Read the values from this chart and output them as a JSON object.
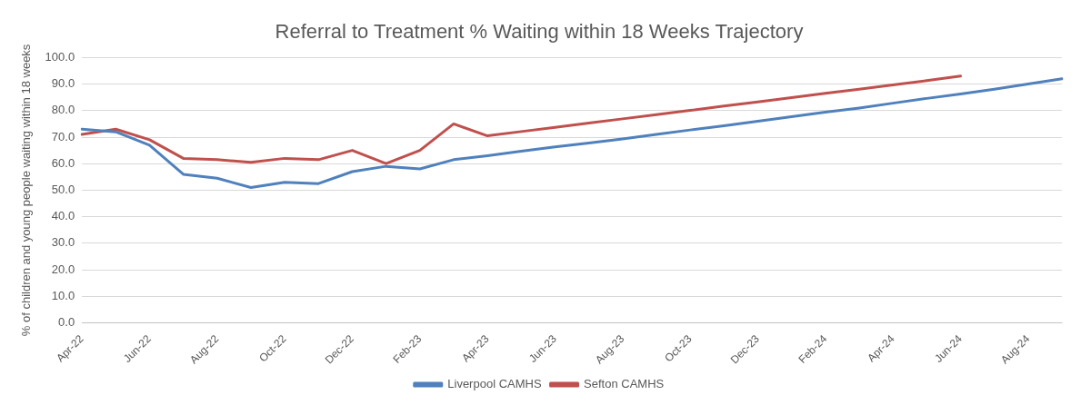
{
  "chart_data": {
    "type": "line",
    "title": "Referral to Treatment % Waiting within 18 Weeks Trajectory",
    "ylabel": "% of children and young people waiting within 18 weeks",
    "categories": [
      "Apr-22",
      null,
      "Jun-22",
      null,
      "Aug-22",
      null,
      "Oct-22",
      null,
      "Dec-22",
      null,
      "Feb-23",
      null,
      "Apr-23",
      null,
      "Jun-23",
      null,
      "Aug-23",
      null,
      "Oct-23",
      null,
      "Dec-23",
      null,
      "Feb-24",
      null,
      "Apr-24",
      null,
      "Jun-24",
      null,
      "Aug-24",
      null
    ],
    "series": [
      {
        "name": "Liverpool CAMHS",
        "color": "#4f81bd",
        "values": [
          73,
          72,
          67,
          56,
          54.5,
          51,
          53,
          52.5,
          57,
          59,
          58,
          61.5,
          63,
          64.7,
          66.3,
          67.8,
          69.3,
          71,
          72.7,
          74.3,
          76,
          77.7,
          79.4,
          81,
          82.8,
          84.6,
          86.3,
          88.1,
          90,
          92
        ]
      },
      {
        "name": "Sefton CAMHS",
        "color": "#c0504d",
        "values": [
          71,
          73,
          69,
          62,
          61.5,
          60.5,
          62,
          61.5,
          65,
          60,
          65,
          75,
          70.5,
          72.1,
          73.7,
          75.3,
          76.9,
          78.5,
          80.1,
          81.7,
          83.3,
          84.9,
          86.5,
          88.1,
          89.7,
          91.3,
          93,
          null,
          null,
          null
        ]
      }
    ],
    "ylim": [
      0,
      100
    ],
    "yticks": [
      {
        "value": 0,
        "label": "0.0"
      },
      {
        "value": 10,
        "label": "10.0"
      },
      {
        "value": 20,
        "label": "20.0"
      },
      {
        "value": 30,
        "label": "30.0"
      },
      {
        "value": 40,
        "label": "40.0"
      },
      {
        "value": 50,
        "label": "50.0"
      },
      {
        "value": 60,
        "label": "60.0"
      },
      {
        "value": 70,
        "label": "70.0"
      },
      {
        "value": 80,
        "label": "80.0"
      },
      {
        "value": 90,
        "label": "90.0"
      },
      {
        "value": 100,
        "label": "100.0"
      }
    ],
    "grid": "y",
    "legend": "bottom",
    "marker": "none",
    "line_style": "solid"
  }
}
